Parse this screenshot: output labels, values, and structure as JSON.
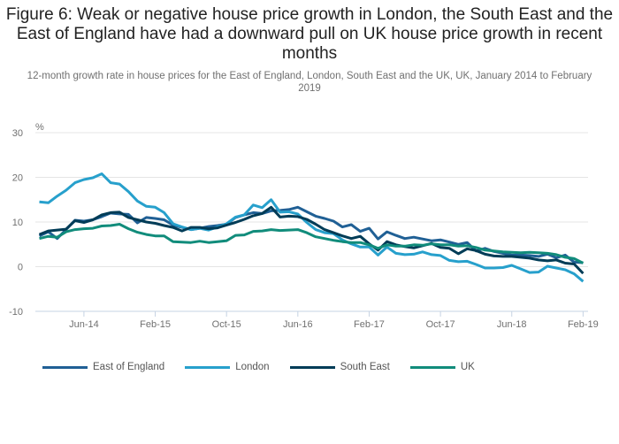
{
  "chart_data": {
    "type": "line",
    "title": "Figure 6: Weak or negative house price growth in London, the South East and the East of England have had a downward pull on UK house price growth in recent months",
    "subtitle": "12-month growth rate in house prices for the East of England, London, South East and the UK, UK, January 2014 to February 2019",
    "xlabel": "",
    "ylabel": "%",
    "ylim": [
      -10,
      30
    ],
    "yticks": [
      30,
      20,
      10,
      0,
      -10
    ],
    "xticks": [
      "Jun-14",
      "Feb-15",
      "Oct-15",
      "Jun-16",
      "Feb-17",
      "Oct-17",
      "Jun-18",
      "Feb-19"
    ],
    "xtick_month_index": [
      5,
      13,
      21,
      29,
      37,
      45,
      53,
      61
    ],
    "x_start": "Jan-14",
    "x_end": "Feb-19",
    "grid": true,
    "legend_position": "bottom",
    "series": [
      {
        "name": "East of England",
        "color": "#206095",
        "values": [
          6.9,
          7.8,
          6.3,
          8.3,
          10.4,
          10.2,
          10.5,
          11.2,
          12.0,
          11.8,
          11.7,
          9.8,
          11.0,
          10.8,
          10.5,
          9.3,
          8.8,
          8.3,
          8.6,
          9.0,
          9.2,
          9.5,
          11.0,
          11.6,
          12.1,
          11.9,
          12.5,
          12.6,
          12.8,
          13.3,
          12.3,
          11.3,
          10.8,
          10.2,
          8.9,
          9.4,
          7.9,
          8.6,
          6.2,
          7.8,
          7.0,
          6.3,
          6.6,
          6.2,
          5.8,
          6.0,
          5.5,
          5.0,
          5.4,
          3.5,
          4.1,
          3.4,
          3.0,
          2.6,
          2.6,
          2.5,
          2.3,
          2.8,
          2.0,
          2.6,
          1.0,
          0.9
        ],
        "note": "values estimated from chart"
      },
      {
        "name": "London",
        "color": "#27a0cc",
        "values": [
          14.5,
          14.3,
          15.8,
          17.1,
          18.8,
          19.5,
          19.9,
          20.8,
          18.8,
          18.5,
          16.8,
          14.7,
          13.5,
          13.3,
          12.1,
          9.6,
          8.9,
          8.3,
          8.6,
          8.2,
          8.9,
          9.6,
          11.1,
          11.6,
          13.8,
          13.2,
          15.0,
          12.2,
          12.3,
          11.8,
          9.9,
          8.3,
          7.6,
          7.4,
          6.0,
          5.1,
          4.4,
          4.4,
          2.6,
          4.4,
          3.0,
          2.7,
          2.8,
          3.3,
          2.7,
          2.5,
          1.4,
          1.1,
          1.2,
          0.5,
          -0.3,
          -0.3,
          -0.2,
          0.3,
          -0.5,
          -1.3,
          -1.2,
          0.1,
          -0.3,
          -0.7,
          -1.6,
          -3.3
        ],
        "note": "values estimated from chart"
      },
      {
        "name": "South East",
        "color": "#003c57",
        "values": [
          7.2,
          8.0,
          8.2,
          8.4,
          10.3,
          9.9,
          10.5,
          11.6,
          12.1,
          12.2,
          11.0,
          10.5,
          10.0,
          9.7,
          9.2,
          8.8,
          8.0,
          8.8,
          8.8,
          8.5,
          8.7,
          9.3,
          9.9,
          10.6,
          11.4,
          11.9,
          13.3,
          11.1,
          11.3,
          11.2,
          10.6,
          9.5,
          8.3,
          7.6,
          6.9,
          6.3,
          6.8,
          5.1,
          3.7,
          5.6,
          4.9,
          4.5,
          4.2,
          4.7,
          5.2,
          4.3,
          4.1,
          2.9,
          4.0,
          3.6,
          2.8,
          2.4,
          2.3,
          2.3,
          2.1,
          1.9,
          1.5,
          1.3,
          1.5,
          0.8,
          0.6,
          -1.5
        ],
        "note": "values estimated from chart"
      },
      {
        "name": "UK",
        "color": "#118c7b",
        "values": [
          6.3,
          6.8,
          6.6,
          7.8,
          8.3,
          8.5,
          8.6,
          9.1,
          9.2,
          9.5,
          8.5,
          7.7,
          7.2,
          6.9,
          6.9,
          5.6,
          5.5,
          5.4,
          5.7,
          5.4,
          5.6,
          5.8,
          7.0,
          7.1,
          7.9,
          8.0,
          8.3,
          8.1,
          8.2,
          8.3,
          7.6,
          6.7,
          6.3,
          5.9,
          5.6,
          5.4,
          5.4,
          4.9,
          4.1,
          4.9,
          4.6,
          4.6,
          4.9,
          4.8,
          5.1,
          4.9,
          4.9,
          4.6,
          4.7,
          4.3,
          3.7,
          3.5,
          3.3,
          3.2,
          3.1,
          3.2,
          3.1,
          3.0,
          2.7,
          2.1,
          1.8,
          0.8
        ],
        "note": "values estimated from chart"
      }
    ]
  }
}
